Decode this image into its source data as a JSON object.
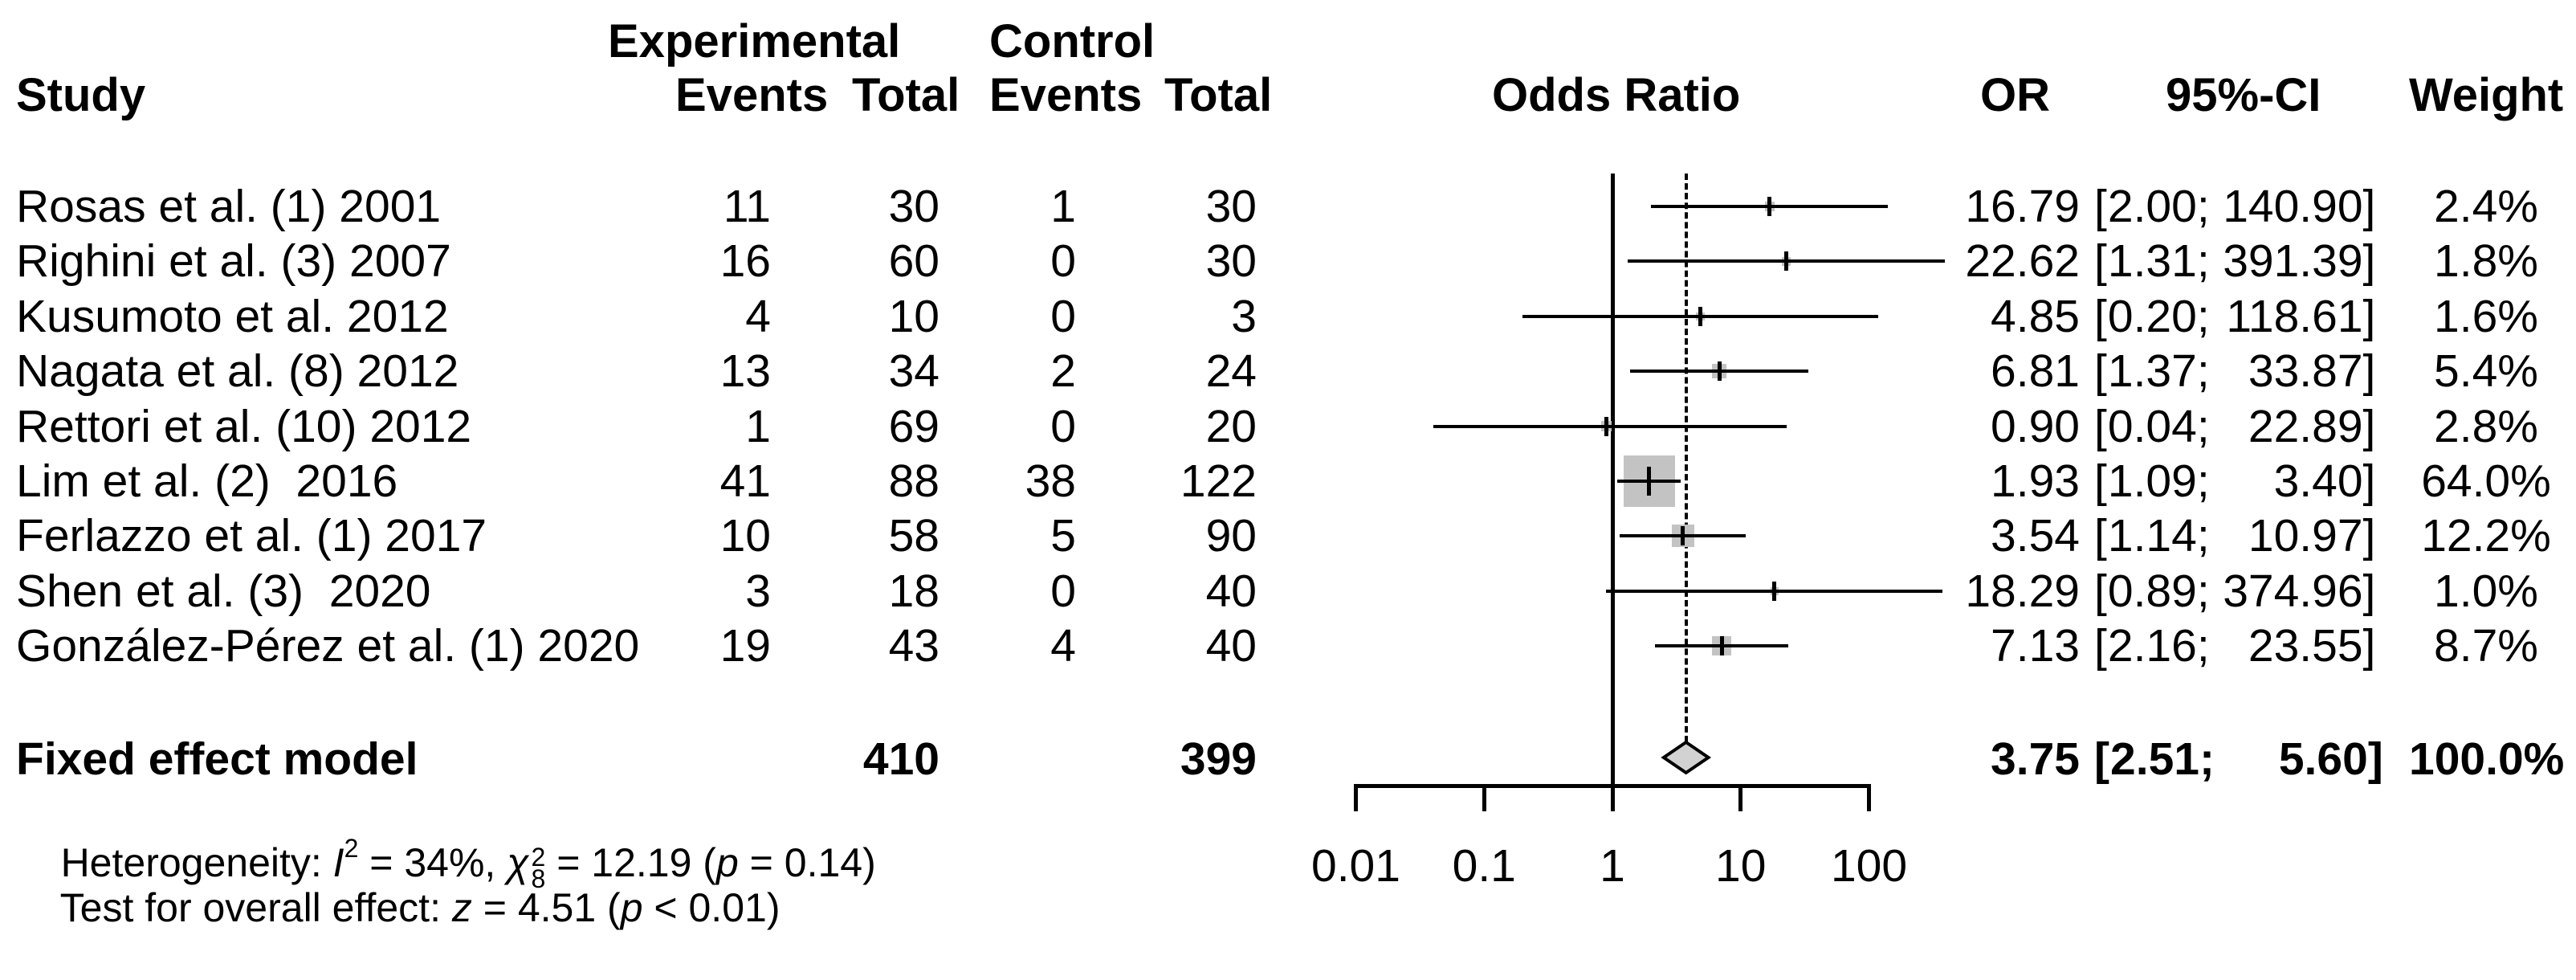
{
  "header": {
    "study": "Study",
    "group_experimental": "Experimental",
    "group_control": "Control",
    "col_events": "Events",
    "col_total": "Total",
    "col_odds_ratio": "Odds Ratio",
    "col_or": "OR",
    "col_ci": "95%-CI",
    "col_weight": "Weight"
  },
  "format": {
    "ci_open": "[",
    "ci_sep": "; ",
    "ci_close": "]"
  },
  "studies": [
    {
      "name": "Rosas et al. (1) 2001",
      "exp_events": "11",
      "exp_total": "30",
      "ctrl_events": "1",
      "ctrl_total": "30",
      "or": "16.79",
      "ci_low": "2.00",
      "ci_high": "140.90",
      "weight": "2.4%"
    },
    {
      "name": "Righini et al. (3) 2007",
      "exp_events": "16",
      "exp_total": "60",
      "ctrl_events": "0",
      "ctrl_total": "30",
      "or": "22.62",
      "ci_low": "1.31",
      "ci_high": "391.39",
      "weight": "1.8%"
    },
    {
      "name": "Kusumoto et al. 2012",
      "exp_events": "4",
      "exp_total": "10",
      "ctrl_events": "0",
      "ctrl_total": "3",
      "or": "4.85",
      "ci_low": "0.20",
      "ci_high": "118.61",
      "weight": "1.6%"
    },
    {
      "name": "Nagata et al. (8) 2012",
      "exp_events": "13",
      "exp_total": "34",
      "ctrl_events": "2",
      "ctrl_total": "24",
      "or": "6.81",
      "ci_low": "1.37",
      "ci_high": "33.87",
      "weight": "5.4%"
    },
    {
      "name": "Rettori et al. (10) 2012",
      "exp_events": "1",
      "exp_total": "69",
      "ctrl_events": "0",
      "ctrl_total": "20",
      "or": "0.90",
      "ci_low": "0.04",
      "ci_high": "22.89",
      "weight": "2.8%"
    },
    {
      "name": "Lim et al. (2)  2016",
      "exp_events": "41",
      "exp_total": "88",
      "ctrl_events": "38",
      "ctrl_total": "122",
      "or": "1.93",
      "ci_low": "1.09",
      "ci_high": "3.40",
      "weight": "64.0%"
    },
    {
      "name": "Ferlazzo et al. (1) 2017",
      "exp_events": "10",
      "exp_total": "58",
      "ctrl_events": "5",
      "ctrl_total": "90",
      "or": "3.54",
      "ci_low": "1.14",
      "ci_high": "10.97",
      "weight": "12.2%"
    },
    {
      "name": "Shen et al. (3)  2020",
      "exp_events": "3",
      "exp_total": "18",
      "ctrl_events": "0",
      "ctrl_total": "40",
      "or": "18.29",
      "ci_low": "0.89",
      "ci_high": "374.96",
      "weight": "1.0%"
    },
    {
      "name": "González-Pérez et al. (1) 2020",
      "exp_events": "19",
      "exp_total": "43",
      "ctrl_events": "4",
      "ctrl_total": "40",
      "or": "7.13",
      "ci_low": "2.16",
      "ci_high": "23.55",
      "weight": "8.7%"
    }
  ],
  "summary": {
    "label": "Fixed effect model",
    "exp_total": "410",
    "ctrl_total": "399",
    "or": "3.75",
    "ci_low": "2.51",
    "ci_high": "5.60",
    "weight": "100.0%"
  },
  "footnotes": {
    "heterogeneity": {
      "prefix": "Heterogeneity: ",
      "i_sym": "I",
      "i_sup": "2",
      "mid1": " = 34%, ",
      "chi_sym": "χ",
      "chi_sup": "2",
      "chi_sub": "8",
      "mid2": " = 12.19 (",
      "p_sym": "p",
      "tail": " = 0.14)"
    },
    "overall_test": {
      "prefix": "Test for overall effect: ",
      "z_sym": "z",
      "mid": " = 4.51 (",
      "p_sym": "p",
      "tail": " < 0.01)"
    }
  },
  "chart_data": {
    "type": "scatter",
    "subtype": "forest-plot",
    "title": "Odds Ratio",
    "x_scale": "log10",
    "x_ticks": [
      0.01,
      0.1,
      1,
      10,
      100
    ],
    "x_tick_labels": [
      "0.01",
      "0.1",
      "1",
      "10",
      "100"
    ],
    "xlim": [
      0.01,
      100
    ],
    "ref_line_x": 1,
    "dashed_line_x": 3.75,
    "marker_color": "#c3c3c3",
    "diamond_color": "#d2d2d2",
    "series": [
      {
        "name": "Rosas et al. (1) 2001",
        "or": 16.79,
        "ci": [
          2.0,
          140.9
        ],
        "weight_pct": 2.4
      },
      {
        "name": "Righini et al. (3) 2007",
        "or": 22.62,
        "ci": [
          1.31,
          391.39
        ],
        "weight_pct": 1.8
      },
      {
        "name": "Kusumoto et al. 2012",
        "or": 4.85,
        "ci": [
          0.2,
          118.61
        ],
        "weight_pct": 1.6
      },
      {
        "name": "Nagata et al. (8) 2012",
        "or": 6.81,
        "ci": [
          1.37,
          33.87
        ],
        "weight_pct": 5.4
      },
      {
        "name": "Rettori et al. (10) 2012",
        "or": 0.9,
        "ci": [
          0.04,
          22.89
        ],
        "weight_pct": 2.8
      },
      {
        "name": "Lim et al. (2) 2016",
        "or": 1.93,
        "ci": [
          1.09,
          3.4
        ],
        "weight_pct": 64.0
      },
      {
        "name": "Ferlazzo et al. (1) 2017",
        "or": 3.54,
        "ci": [
          1.14,
          10.97
        ],
        "weight_pct": 12.2
      },
      {
        "name": "Shen et al. (3) 2020",
        "or": 18.29,
        "ci": [
          0.89,
          374.96
        ],
        "weight_pct": 1.0
      },
      {
        "name": "González-Pérez et al. (1) 2020",
        "or": 7.13,
        "ci": [
          2.16,
          23.55
        ],
        "weight_pct": 8.7
      }
    ],
    "summary": {
      "name": "Fixed effect model",
      "or": 3.75,
      "ci": [
        2.51,
        5.6
      ],
      "weight_pct": 100.0,
      "heterogeneity_I2_pct": 34,
      "chi2": 12.19,
      "chi2_df": 8,
      "chi2_p": 0.14,
      "z": 4.51,
      "p": "<0.01",
      "experimental_total": 410,
      "control_total": 399
    }
  }
}
